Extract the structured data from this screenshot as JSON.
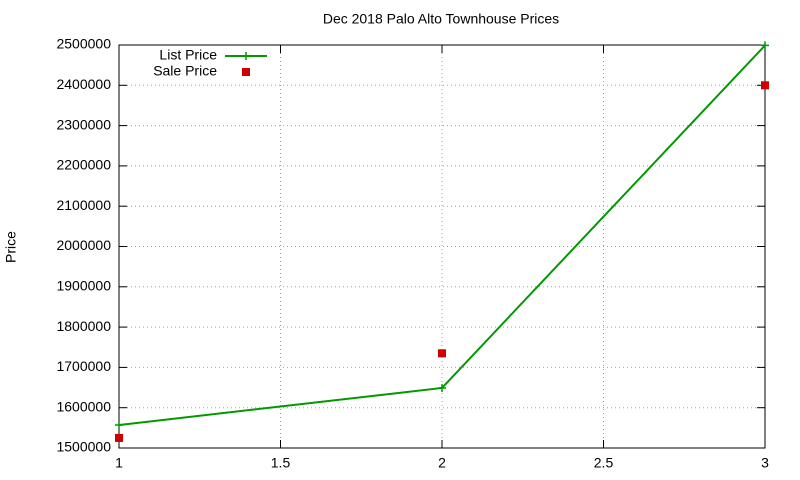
{
  "chart_data": {
    "type": "line",
    "title": "Dec 2018 Palo Alto Townhouse Prices",
    "y_label": "Price",
    "x": [
      1,
      2,
      3
    ],
    "series": [
      {
        "name": "List Price",
        "color": "#009900",
        "line": true,
        "marker": "plus",
        "values": [
          1557000,
          1649000,
          2499000
        ]
      },
      {
        "name": "Sale Price",
        "color": "#cc0000",
        "line": false,
        "marker": "square",
        "values": [
          1525000,
          1735000,
          2400000
        ]
      }
    ],
    "xlim": [
      1,
      3
    ],
    "xticks": [
      1,
      1.5,
      2,
      2.5,
      3
    ],
    "ylim": [
      1500000,
      2500000
    ],
    "yticks": [
      1500000,
      1600000,
      1700000,
      1800000,
      1900000,
      2000000,
      2100000,
      2200000,
      2300000,
      2400000,
      2500000
    ],
    "grid": true,
    "legend": "top-left"
  }
}
